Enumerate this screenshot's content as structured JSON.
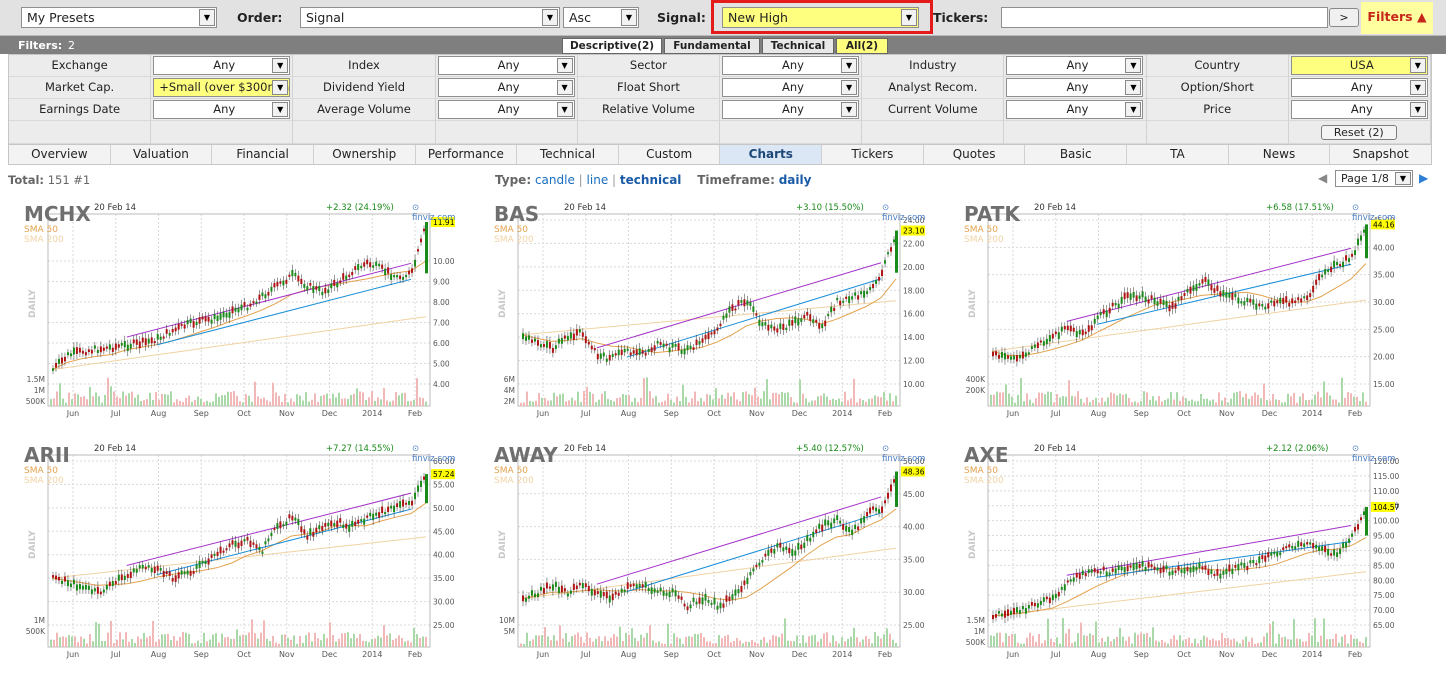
{
  "toolbar": {
    "presets": "My Presets",
    "order_label": "Order:",
    "order_value": "Signal",
    "order_dir": "Asc",
    "signal_label": "Signal:",
    "signal_value": "New High",
    "tickers_label": "Tickers:",
    "tickers_value": "",
    "go_button": ">",
    "filters_toggle": "Filters ▲"
  },
  "filter_bar": {
    "label": "Filters:",
    "count": "2",
    "tabs": [
      "Descriptive(2)",
      "Fundamental",
      "Technical",
      "All(2)"
    ]
  },
  "filters": [
    [
      {
        "label": "Exchange",
        "value": "Any"
      },
      {
        "label": "Index",
        "value": "Any"
      },
      {
        "label": "Sector",
        "value": "Any"
      },
      {
        "label": "Industry",
        "value": "Any"
      },
      {
        "label": "Country",
        "value": "USA"
      }
    ],
    [
      {
        "label": "Market Cap.",
        "value": "+Small (over $300mln)"
      },
      {
        "label": "Dividend Yield",
        "value": "Any"
      },
      {
        "label": "Float Short",
        "value": "Any"
      },
      {
        "label": "Analyst Recom.",
        "value": "Any"
      },
      {
        "label": "Option/Short",
        "value": "Any"
      }
    ],
    [
      {
        "label": "Earnings Date",
        "value": "Any"
      },
      {
        "label": "Average Volume",
        "value": "Any"
      },
      {
        "label": "Relative Volume",
        "value": "Any"
      },
      {
        "label": "Current Volume",
        "value": "Any"
      },
      {
        "label": "Price",
        "value": "Any"
      }
    ]
  ],
  "reset_label": "Reset (2)",
  "view_tabs": [
    "Overview",
    "Valuation",
    "Financial",
    "Ownership",
    "Performance",
    "Technical",
    "Custom",
    "Charts",
    "Tickers",
    "Quotes",
    "Basic",
    "TA",
    "News",
    "Snapshot"
  ],
  "active_view": "Charts",
  "summary": {
    "total_label": "Total:",
    "total_value": "151 #1"
  },
  "chart_type": {
    "label": "Type:",
    "options": [
      "candle",
      "line",
      "technical"
    ],
    "selected": "technical"
  },
  "timeframe": {
    "label": "Timeframe:",
    "value": "daily"
  },
  "page_select": "Page 1/8",
  "colors": {
    "signal_highlight": "#ffff7f",
    "active_filter": "#ffff7f",
    "signal_border": "#e31b1b",
    "up": "#1a8a1a",
    "down": "#b01313",
    "resistance": "#a431c9",
    "support": "#1a8fd8"
  },
  "chart_data": [
    {
      "type": "line",
      "ticker": "MCHX",
      "date": "20 Feb 14",
      "change": "+2.32 (24.19%)",
      "last": "11.91",
      "source": "finviz.com",
      "sma50_label": "SMA 50",
      "sma200_label": "SMA 200",
      "period_label": "DAILY",
      "x_ticks": [
        "Jun",
        "Jul",
        "Aug",
        "Sep",
        "Oct",
        "Nov",
        "Dec",
        "2014",
        "Feb"
      ],
      "y_ticks": [
        "10.00",
        "9.00",
        "8.00",
        "7.00",
        "6.00",
        "5.00",
        "4.00"
      ],
      "vol_ticks": [
        "1.5M",
        "1M",
        "500K"
      ],
      "ylim": [
        4,
        12
      ],
      "close": [
        4.7,
        5.4,
        5.6,
        5.7,
        5.8,
        5.9,
        6.0,
        6.2,
        6.6,
        6.9,
        7.1,
        7.2,
        7.6,
        7.8,
        8.3,
        8.8,
        9.3,
        8.8,
        8.5,
        8.9,
        9.5,
        9.9,
        9.6,
        9.2,
        9.4,
        11.9
      ]
    },
    {
      "type": "line",
      "ticker": "BAS",
      "date": "20 Feb 14",
      "change": "+3.10 (15.50%)",
      "last": "23.10",
      "source": "finviz.com",
      "sma50_label": "SMA 50",
      "sma200_label": "SMA 200",
      "period_label": "DAILY",
      "x_ticks": [
        "Jun",
        "Jul",
        "Aug",
        "Sep",
        "Oct",
        "Nov",
        "Dec",
        "2014",
        "Feb"
      ],
      "y_ticks": [
        "24.00",
        "22.00",
        "20.00",
        "18.00",
        "16.00",
        "14.00",
        "12.00",
        "10.00"
      ],
      "vol_ticks": [
        "6M",
        "4M",
        "2M"
      ],
      "ylim": [
        10,
        24
      ],
      "close": [
        14.2,
        13.6,
        13.1,
        14.0,
        14.4,
        12.4,
        12.2,
        12.8,
        12.6,
        13.4,
        13.1,
        12.9,
        13.6,
        14.8,
        16.5,
        17.0,
        15.0,
        14.6,
        15.2,
        15.8,
        15.0,
        17.0,
        17.3,
        18.0,
        19.5,
        23.1
      ]
    },
    {
      "type": "line",
      "ticker": "PATK",
      "date": "20 Feb 14",
      "change": "+6.58 (17.51%)",
      "last": "44.16",
      "source": "finviz.com",
      "sma50_label": "SMA 50",
      "sma200_label": "SMA 200",
      "period_label": "DAILY",
      "x_ticks": [
        "Jun",
        "Jul",
        "Aug",
        "Sep",
        "Oct",
        "Nov",
        "Dec",
        "2014",
        "Feb"
      ],
      "y_ticks": [
        "45.00",
        "40.00",
        "35.00",
        "30.00",
        "25.00",
        "20.00",
        "15.00"
      ],
      "vol_ticks": [
        "400K",
        "200K"
      ],
      "ylim": [
        15,
        45
      ],
      "close": [
        21,
        19.5,
        20,
        22,
        24,
        25,
        24,
        27,
        29,
        31,
        31,
        30,
        29,
        32,
        34,
        32,
        31,
        30,
        29,
        30,
        30,
        31,
        35,
        37,
        38,
        44.2
      ]
    },
    {
      "type": "line",
      "ticker": "ARII",
      "date": "20 Feb 14",
      "change": "+7.27 (14.55%)",
      "last": "57.24",
      "source": "finviz.com",
      "sma50_label": "SMA 50",
      "sma200_label": "SMA 200",
      "period_label": "DAILY",
      "x_ticks": [
        "Jun",
        "Jul",
        "Aug",
        "Sep",
        "Oct",
        "Nov",
        "Dec",
        "2014",
        "Feb"
      ],
      "y_ticks": [
        "60.00",
        "55.00",
        "50.00",
        "45.00",
        "40.00",
        "35.00",
        "30.00",
        "25.00"
      ],
      "vol_ticks": [
        "1M",
        "500K"
      ],
      "ylim": [
        25,
        60
      ],
      "close": [
        35,
        34,
        33,
        32,
        34,
        36,
        37,
        37,
        35,
        36,
        38,
        40,
        42,
        43,
        41,
        46,
        48,
        44,
        46,
        47,
        46,
        48,
        49,
        50,
        51,
        57.2
      ]
    },
    {
      "type": "line",
      "ticker": "AWAY",
      "date": "20 Feb 14",
      "change": "+5.40 (12.57%)",
      "last": "48.36",
      "source": "finviz.com",
      "sma50_label": "SMA 50",
      "sma200_label": "SMA 200",
      "period_label": "DAILY",
      "x_ticks": [
        "Jun",
        "Jul",
        "Aug",
        "Sep",
        "Oct",
        "Nov",
        "Dec",
        "2014",
        "Feb"
      ],
      "y_ticks": [
        "50.00",
        "45.00",
        "40.00",
        "35.00",
        "30.00",
        "25.00"
      ],
      "vol_ticks": [
        "10M",
        "5M"
      ],
      "ylim": [
        25,
        50
      ],
      "close": [
        29,
        30,
        31,
        30,
        31,
        30,
        29,
        31,
        31,
        30,
        30,
        28,
        29,
        28,
        29,
        32,
        35,
        37,
        36,
        38,
        40,
        41,
        39,
        42,
        43,
        48.4
      ]
    },
    {
      "type": "line",
      "ticker": "AXE",
      "date": "20 Feb 14",
      "change": "+2.12 (2.06%)",
      "last": "104.57",
      "source": "finviz.com",
      "sma50_label": "SMA 50",
      "sma200_label": "SMA 200",
      "period_label": "DAILY",
      "x_ticks": [
        "Jun",
        "Jul",
        "Aug",
        "Sep",
        "Oct",
        "Nov",
        "Dec",
        "2014",
        "Feb"
      ],
      "y_ticks": [
        "120.00",
        "115.00",
        "110.00",
        "105.00",
        "100.00",
        "95.00",
        "90.00",
        "85.00",
        "80.00",
        "75.00",
        "70.00",
        "65.00"
      ],
      "vol_ticks": [
        "1.5M",
        "1M",
        "500K"
      ],
      "ylim": [
        65,
        120
      ],
      "close": [
        68,
        69,
        70,
        72,
        74,
        79,
        82,
        83,
        83,
        84,
        85,
        84,
        83,
        84,
        84,
        82,
        84,
        85,
        87,
        89,
        91,
        93,
        91,
        88,
        95,
        104.6
      ]
    }
  ]
}
